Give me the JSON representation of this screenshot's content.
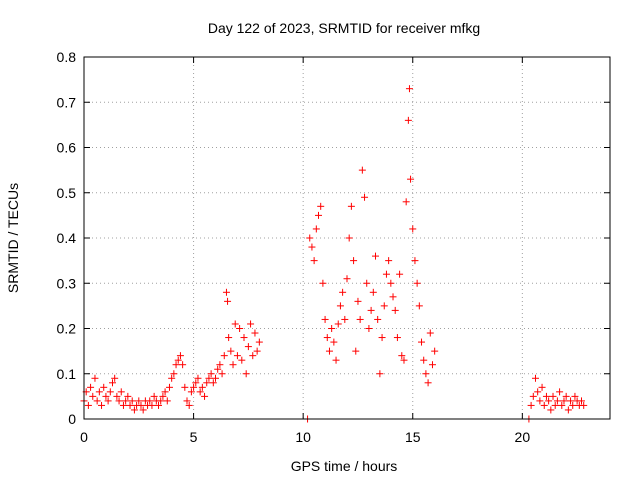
{
  "chart_data": {
    "type": "scatter",
    "title": "Day 122 of 2023, SRMTID for receiver mfkg",
    "xlabel": "GPS time / hours",
    "ylabel": "SRMTID / TECUs",
    "xlim": [
      0,
      24
    ],
    "ylim": [
      0,
      0.8
    ],
    "xticks": [
      0,
      5,
      10,
      15,
      20
    ],
    "xtick_labels": [
      "0",
      "5",
      "10",
      "15",
      "20"
    ],
    "yticks": [
      0,
      0.1,
      0.2,
      0.3,
      0.4,
      0.5,
      0.6,
      0.7,
      0.8
    ],
    "ytick_labels": [
      "0",
      "0.1",
      "0.2",
      "0.3",
      "0.4",
      "0.5",
      "0.6",
      "0.7",
      "0.8"
    ],
    "grid": true,
    "marker": "+",
    "marker_color": "#ff0000",
    "series": [
      {
        "name": "SRMTID",
        "points": [
          [
            0.0,
            0.04
          ],
          [
            0.1,
            0.06
          ],
          [
            0.2,
            0.03
          ],
          [
            0.3,
            0.07
          ],
          [
            0.4,
            0.05
          ],
          [
            0.5,
            0.09
          ],
          [
            0.6,
            0.04
          ],
          [
            0.7,
            0.06
          ],
          [
            0.8,
            0.03
          ],
          [
            0.9,
            0.07
          ],
          [
            1.0,
            0.05
          ],
          [
            1.1,
            0.04
          ],
          [
            1.2,
            0.06
          ],
          [
            1.3,
            0.08
          ],
          [
            1.4,
            0.09
          ],
          [
            1.5,
            0.05
          ],
          [
            1.6,
            0.04
          ],
          [
            1.7,
            0.06
          ],
          [
            1.8,
            0.03
          ],
          [
            1.9,
            0.04
          ],
          [
            2.0,
            0.05
          ],
          [
            2.1,
            0.03
          ],
          [
            2.2,
            0.04
          ],
          [
            2.3,
            0.02
          ],
          [
            2.4,
            0.03
          ],
          [
            2.5,
            0.04
          ],
          [
            2.6,
            0.03
          ],
          [
            2.7,
            0.02
          ],
          [
            2.8,
            0.04
          ],
          [
            2.9,
            0.03
          ],
          [
            3.0,
            0.04
          ],
          [
            3.1,
            0.03
          ],
          [
            3.2,
            0.05
          ],
          [
            3.3,
            0.04
          ],
          [
            3.4,
            0.03
          ],
          [
            3.5,
            0.04
          ],
          [
            3.6,
            0.05
          ],
          [
            3.7,
            0.06
          ],
          [
            3.8,
            0.04
          ],
          [
            3.9,
            0.07
          ],
          [
            4.0,
            0.09
          ],
          [
            4.1,
            0.1
          ],
          [
            4.2,
            0.12
          ],
          [
            4.3,
            0.13
          ],
          [
            4.4,
            0.14
          ],
          [
            4.5,
            0.12
          ],
          [
            4.6,
            0.07
          ],
          [
            4.7,
            0.04
          ],
          [
            4.8,
            0.03
          ],
          [
            4.9,
            0.06
          ],
          [
            5.0,
            0.07
          ],
          [
            5.1,
            0.08
          ],
          [
            5.2,
            0.09
          ],
          [
            5.3,
            0.06
          ],
          [
            5.4,
            0.07
          ],
          [
            5.5,
            0.05
          ],
          [
            5.6,
            0.08
          ],
          [
            5.7,
            0.09
          ],
          [
            5.8,
            0.1
          ],
          [
            5.9,
            0.08
          ],
          [
            6.0,
            0.09
          ],
          [
            6.1,
            0.11
          ],
          [
            6.2,
            0.12
          ],
          [
            6.3,
            0.1
          ],
          [
            6.4,
            0.14
          ],
          [
            6.5,
            0.28
          ],
          [
            6.55,
            0.26
          ],
          [
            6.6,
            0.18
          ],
          [
            6.7,
            0.15
          ],
          [
            6.8,
            0.12
          ],
          [
            6.9,
            0.21
          ],
          [
            7.0,
            0.14
          ],
          [
            7.1,
            0.2
          ],
          [
            7.2,
            0.13
          ],
          [
            7.3,
            0.18
          ],
          [
            7.4,
            0.1
          ],
          [
            7.5,
            0.16
          ],
          [
            7.6,
            0.21
          ],
          [
            7.7,
            0.14
          ],
          [
            7.8,
            0.19
          ],
          [
            7.9,
            0.15
          ],
          [
            8.0,
            0.17
          ],
          [
            10.2,
            0.0
          ],
          [
            10.3,
            0.4
          ],
          [
            10.4,
            0.38
          ],
          [
            10.5,
            0.35
          ],
          [
            10.6,
            0.42
          ],
          [
            10.7,
            0.45
          ],
          [
            10.8,
            0.47
          ],
          [
            10.9,
            0.3
          ],
          [
            11.0,
            0.22
          ],
          [
            11.1,
            0.18
          ],
          [
            11.2,
            0.15
          ],
          [
            11.3,
            0.2
          ],
          [
            11.4,
            0.17
          ],
          [
            11.5,
            0.13
          ],
          [
            11.6,
            0.21
          ],
          [
            11.7,
            0.25
          ],
          [
            11.8,
            0.28
          ],
          [
            11.9,
            0.22
          ],
          [
            12.0,
            0.31
          ],
          [
            12.1,
            0.4
          ],
          [
            12.2,
            0.47
          ],
          [
            12.3,
            0.35
          ],
          [
            12.4,
            0.15
          ],
          [
            12.5,
            0.26
          ],
          [
            12.6,
            0.22
          ],
          [
            12.7,
            0.55
          ],
          [
            12.8,
            0.49
          ],
          [
            12.9,
            0.3
          ],
          [
            13.0,
            0.2
          ],
          [
            13.1,
            0.24
          ],
          [
            13.2,
            0.28
          ],
          [
            13.3,
            0.36
          ],
          [
            13.4,
            0.22
          ],
          [
            13.5,
            0.1
          ],
          [
            13.6,
            0.18
          ],
          [
            13.7,
            0.25
          ],
          [
            13.8,
            0.32
          ],
          [
            13.9,
            0.35
          ],
          [
            14.0,
            0.3
          ],
          [
            14.1,
            0.27
          ],
          [
            14.2,
            0.24
          ],
          [
            14.3,
            0.18
          ],
          [
            14.4,
            0.32
          ],
          [
            14.5,
            0.14
          ],
          [
            14.6,
            0.13
          ],
          [
            14.7,
            0.48
          ],
          [
            14.8,
            0.66
          ],
          [
            14.85,
            0.73
          ],
          [
            14.9,
            0.53
          ],
          [
            15.0,
            0.42
          ],
          [
            15.1,
            0.35
          ],
          [
            15.2,
            0.3
          ],
          [
            15.3,
            0.25
          ],
          [
            15.4,
            0.17
          ],
          [
            15.5,
            0.13
          ],
          [
            15.6,
            0.1
          ],
          [
            15.7,
            0.08
          ],
          [
            15.8,
            0.19
          ],
          [
            15.9,
            0.12
          ],
          [
            16.0,
            0.15
          ],
          [
            20.3,
            0.0
          ],
          [
            20.4,
            0.03
          ],
          [
            20.5,
            0.05
          ],
          [
            20.6,
            0.09
          ],
          [
            20.7,
            0.06
          ],
          [
            20.8,
            0.04
          ],
          [
            20.9,
            0.07
          ],
          [
            21.0,
            0.03
          ],
          [
            21.1,
            0.05
          ],
          [
            21.2,
            0.04
          ],
          [
            21.3,
            0.02
          ],
          [
            21.4,
            0.05
          ],
          [
            21.5,
            0.03
          ],
          [
            21.6,
            0.04
          ],
          [
            21.7,
            0.06
          ],
          [
            21.8,
            0.03
          ],
          [
            21.9,
            0.04
          ],
          [
            22.0,
            0.05
          ],
          [
            22.1,
            0.02
          ],
          [
            22.2,
            0.04
          ],
          [
            22.3,
            0.03
          ],
          [
            22.4,
            0.05
          ],
          [
            22.5,
            0.04
          ],
          [
            22.6,
            0.03
          ],
          [
            22.7,
            0.04
          ],
          [
            22.8,
            0.03
          ]
        ]
      }
    ]
  }
}
